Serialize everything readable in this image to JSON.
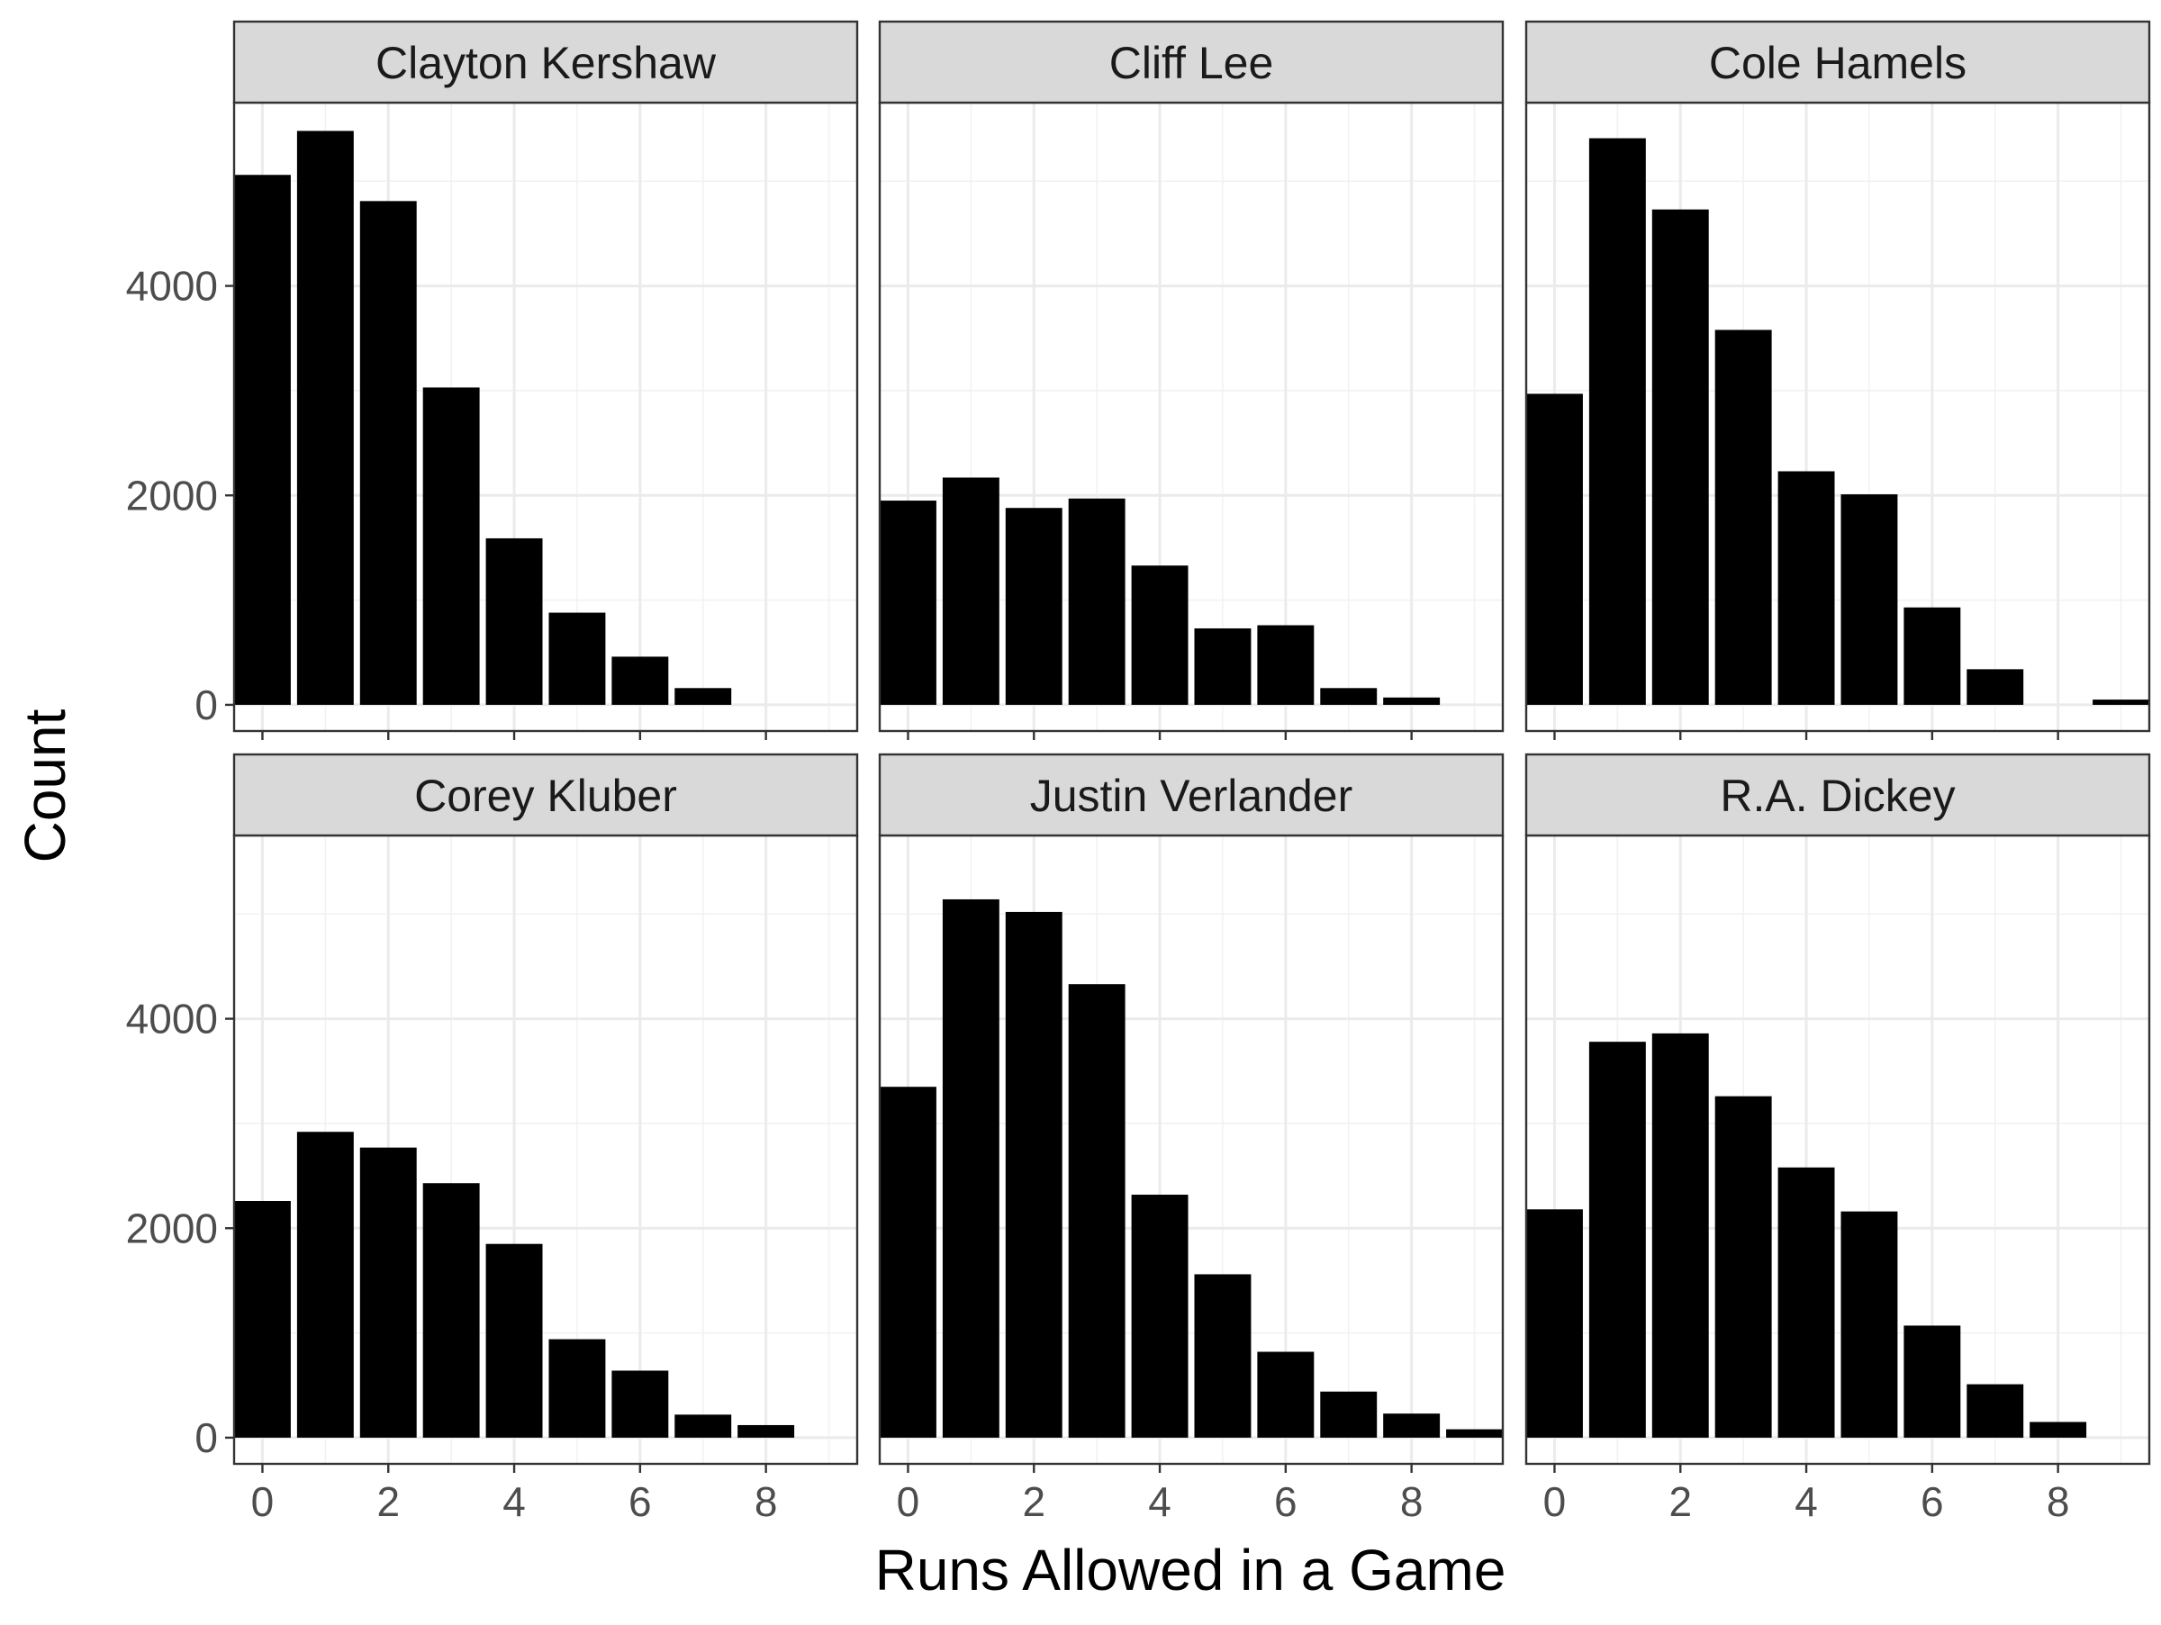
{
  "chart_data": {
    "type": "bar",
    "layout": "facet_grid_2x3",
    "theme": "bw",
    "grid": true,
    "xlabel": "Runs Allowed in a Game",
    "ylabel": "Count",
    "x_categories": [
      0,
      1,
      2,
      3,
      4,
      5,
      6,
      7,
      8,
      9
    ],
    "x_ticks": [
      "0",
      "2",
      "4",
      "6",
      "8"
    ],
    "x_tick_values": [
      0,
      2,
      4,
      6,
      8
    ],
    "xlim": [
      -0.45,
      9.45
    ],
    "y_ticks": [
      "0",
      "2000",
      "4000"
    ],
    "y_tick_values": [
      0,
      2000,
      4000
    ],
    "ylim": [
      -250,
      5750
    ],
    "bar_color": "#000000",
    "strip_color": "#d9d9d9",
    "facets": [
      {
        "name": "Clayton Kershaw",
        "values": [
          5060,
          5480,
          4810,
          3030,
          1590,
          880,
          460,
          160,
          0,
          0
        ]
      },
      {
        "name": "Cliff Lee",
        "values": [
          1950,
          2170,
          1880,
          1970,
          1330,
          730,
          760,
          160,
          70,
          0
        ]
      },
      {
        "name": "Cole Hamels",
        "values": [
          2970,
          5410,
          4730,
          3580,
          2230,
          2010,
          930,
          340,
          0,
          50
        ]
      },
      {
        "name": "Corey Kluber",
        "values": [
          2260,
          2920,
          2770,
          2430,
          1850,
          940,
          640,
          220,
          120,
          0
        ]
      },
      {
        "name": "Justin Verlander",
        "values": [
          3350,
          5140,
          5020,
          4330,
          2320,
          1560,
          820,
          440,
          230,
          80
        ]
      },
      {
        "name": "R.A. Dickey",
        "values": [
          2180,
          3780,
          3860,
          3260,
          2580,
          2160,
          1070,
          510,
          150,
          0
        ]
      }
    ]
  }
}
